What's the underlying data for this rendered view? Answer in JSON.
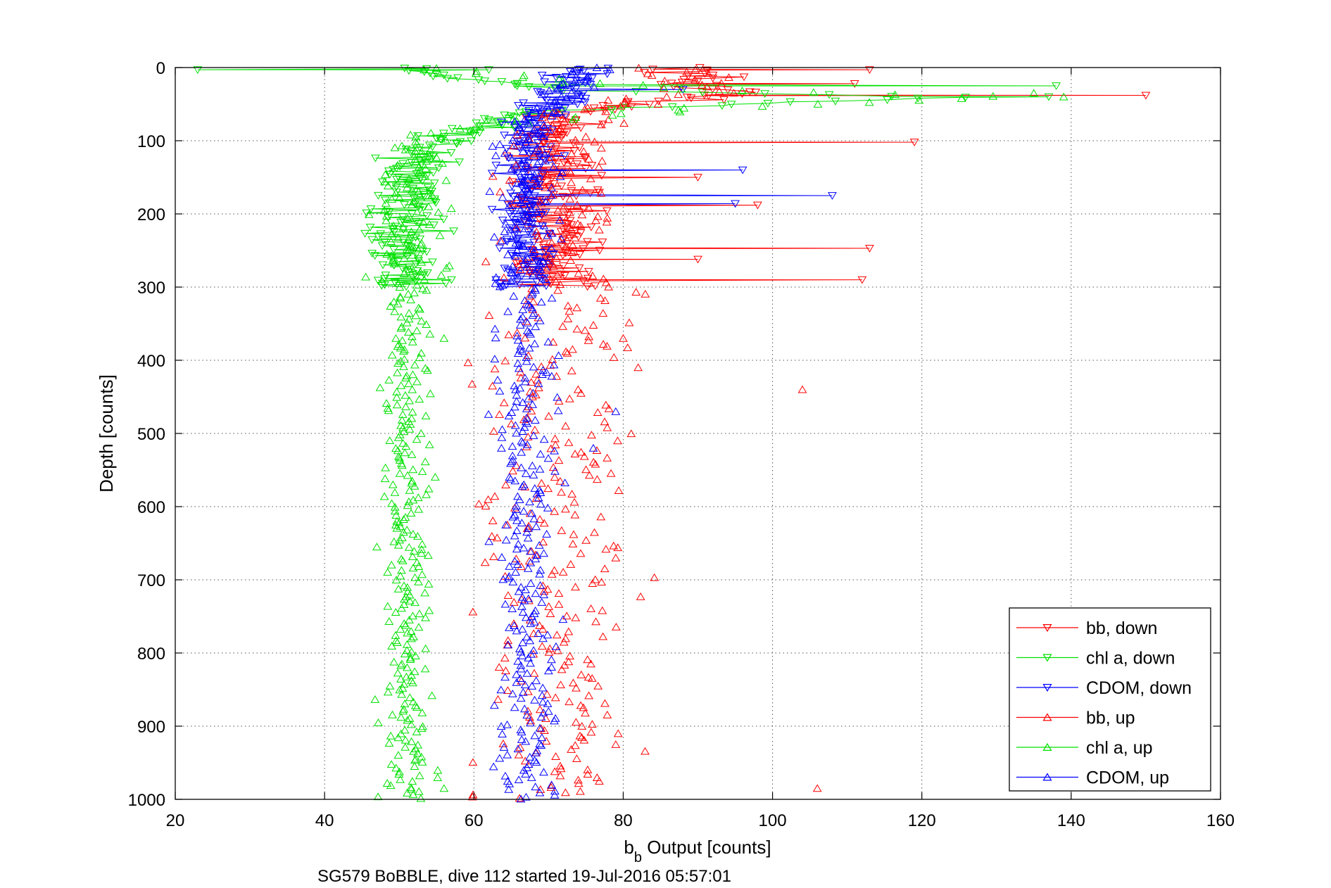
{
  "chart_data": {
    "type": "scatter",
    "title": "",
    "xlabel_main": "b",
    "xlabel_sub": "b",
    "xlabel_rest": " Output [counts]",
    "ylabel": "Depth [counts]",
    "caption": "SG579 BoBBLE, dive 112 started 19-Jul-2016 05:57:01",
    "xlim": [
      20,
      160
    ],
    "ylim": [
      0,
      1000
    ],
    "y_reversed": true,
    "grid": true,
    "xticks": [
      20,
      40,
      60,
      80,
      100,
      120,
      140,
      160
    ],
    "yticks": [
      0,
      100,
      200,
      300,
      400,
      500,
      600,
      700,
      800,
      900,
      1000
    ],
    "legend_position": "bottom-right",
    "series": [
      {
        "name": "bb, down",
        "color": "#ff0000",
        "marker": "down",
        "lines": true,
        "profile": [
          [
            0,
            88
          ],
          [
            20,
            88
          ],
          [
            35,
            96
          ],
          [
            45,
            86
          ],
          [
            55,
            76
          ],
          [
            70,
            71
          ],
          [
            100,
            71
          ],
          [
            200,
            71
          ],
          [
            300,
            71
          ]
        ],
        "spread": [
          3,
          3,
          3,
          3
        ],
        "spikes": [
          [
            3,
            113
          ],
          [
            22,
            111
          ],
          [
            38,
            150
          ],
          [
            102,
            119
          ],
          [
            150,
            90
          ],
          [
            188,
            98
          ],
          [
            247,
            113
          ],
          [
            290,
            112
          ],
          [
            262,
            90
          ]
        ]
      },
      {
        "name": "chl a, down",
        "color": "#00e000",
        "marker": "down",
        "lines": true,
        "profile": [
          [
            0,
            52
          ],
          [
            10,
            55
          ],
          [
            30,
            72
          ],
          [
            40,
            125
          ],
          [
            48,
            100
          ],
          [
            60,
            67
          ],
          [
            80,
            62
          ],
          [
            100,
            55
          ],
          [
            120,
            52
          ],
          [
            200,
            51
          ],
          [
            300,
            51
          ]
        ],
        "spread": [
          1.5,
          2.5,
          2.5,
          1.5
        ],
        "spikes": [
          [
            3,
            23
          ],
          [
            3,
            62
          ],
          [
            25,
            138
          ],
          [
            40,
            137
          ],
          [
            290,
            57
          ]
        ]
      },
      {
        "name": "CDOM, down",
        "color": "#0000ff",
        "marker": "down",
        "lines": true,
        "profile": [
          [
            0,
            74
          ],
          [
            30,
            73
          ],
          [
            60,
            70
          ],
          [
            80,
            67
          ],
          [
            100,
            67
          ],
          [
            300,
            67
          ]
        ],
        "spread": [
          2,
          2,
          2,
          2
        ],
        "spikes": [
          [
            3,
            74
          ],
          [
            140,
            96
          ],
          [
            175,
            108
          ],
          [
            186,
            95
          ],
          [
            30,
            88
          ]
        ]
      },
      {
        "name": "bb, up",
        "color": "#ff0000",
        "marker": "up",
        "lines": false,
        "profile": [
          [
            0,
            85
          ],
          [
            30,
            90
          ],
          [
            60,
            75
          ],
          [
            100,
            71
          ],
          [
            300,
            71
          ],
          [
            1000,
            70
          ]
        ],
        "spread": [
          3,
          4,
          4,
          5
        ],
        "spikes": [
          [
            440,
            104
          ],
          [
            985,
            106
          ],
          [
            370,
            80
          ],
          [
            410,
            82
          ],
          [
            670,
            79
          ],
          [
            925,
            79
          ]
        ]
      },
      {
        "name": "chl a, up",
        "color": "#00e000",
        "marker": "up",
        "lines": false,
        "profile": [
          [
            0,
            52
          ],
          [
            30,
            90
          ],
          [
            40,
            132
          ],
          [
            55,
            90
          ],
          [
            80,
            60
          ],
          [
            110,
            52
          ],
          [
            300,
            51
          ],
          [
            1000,
            51
          ]
        ],
        "spread": [
          1.5,
          2.5,
          2.5,
          1.5
        ],
        "spikes": [
          [
            40,
            139
          ],
          [
            35,
            135
          ],
          [
            655,
            47
          ],
          [
            985,
            56
          ],
          [
            370,
            56
          ]
        ]
      },
      {
        "name": "CDOM, up",
        "color": "#0000ff",
        "marker": "up",
        "lines": false,
        "profile": [
          [
            0,
            75
          ],
          [
            40,
            72
          ],
          [
            80,
            67
          ],
          [
            300,
            67
          ],
          [
            1000,
            67
          ]
        ],
        "spread": [
          1.5,
          2,
          2,
          2
        ],
        "spikes": [
          [
            520,
            76
          ],
          [
            280,
            65
          ],
          [
            470,
            79
          ]
        ]
      }
    ]
  }
}
